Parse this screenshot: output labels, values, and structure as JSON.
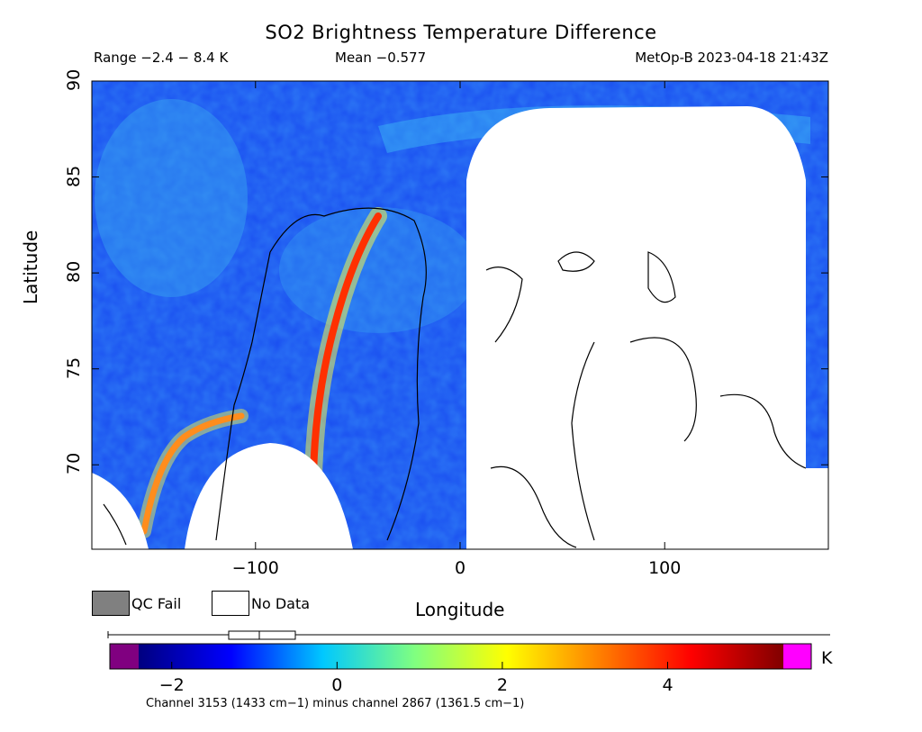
{
  "chart_data": {
    "type": "heatmap",
    "title": "SO2 Brightness Temperature Difference",
    "header": {
      "range": "Range −2.4 − 8.4 K",
      "mean": "Mean −0.577",
      "source": "MetOp-B 2023-04-18 21:43Z"
    },
    "xlabel": "Longitude",
    "ylabel": "Latitude",
    "xlim": [
      -180,
      180
    ],
    "ylim": [
      65.6,
      90
    ],
    "xticks": [
      {
        "value": -100,
        "label": "−100"
      },
      {
        "value": 0,
        "label": "0"
      },
      {
        "value": 100,
        "label": "100"
      }
    ],
    "yticks": [
      {
        "value": 70,
        "label": "70"
      },
      {
        "value": 75,
        "label": "75"
      },
      {
        "value": 80,
        "label": "80"
      },
      {
        "value": 85,
        "label": "85"
      },
      {
        "value": 90,
        "label": "90"
      }
    ],
    "legend": [
      {
        "name": "QC Fail",
        "color": "#808080"
      },
      {
        "name": "No Data",
        "color": "#ffffff"
      }
    ],
    "colorbar": {
      "min": -2.4,
      "max": 5.4,
      "unit": "K",
      "ticks": [
        {
          "value": -2,
          "label": "−2"
        },
        {
          "value": 0,
          "label": "0"
        },
        {
          "value": 2,
          "label": "2"
        },
        {
          "value": 4,
          "label": "4"
        }
      ],
      "under_color": "#800080",
      "over_color": "#ff00ff",
      "colors": [
        "#000080",
        "#0000ff",
        "#00c8ff",
        "#80ff80",
        "#ffff00",
        "#ff8000",
        "#ff0000",
        "#800000"
      ]
    },
    "footnote": "Channel 3153 (1433 cm−1) minus channel 2867 (1361.5 cm−1)",
    "background_color": "#1a4ef0",
    "plume_color": "#ff3000"
  }
}
